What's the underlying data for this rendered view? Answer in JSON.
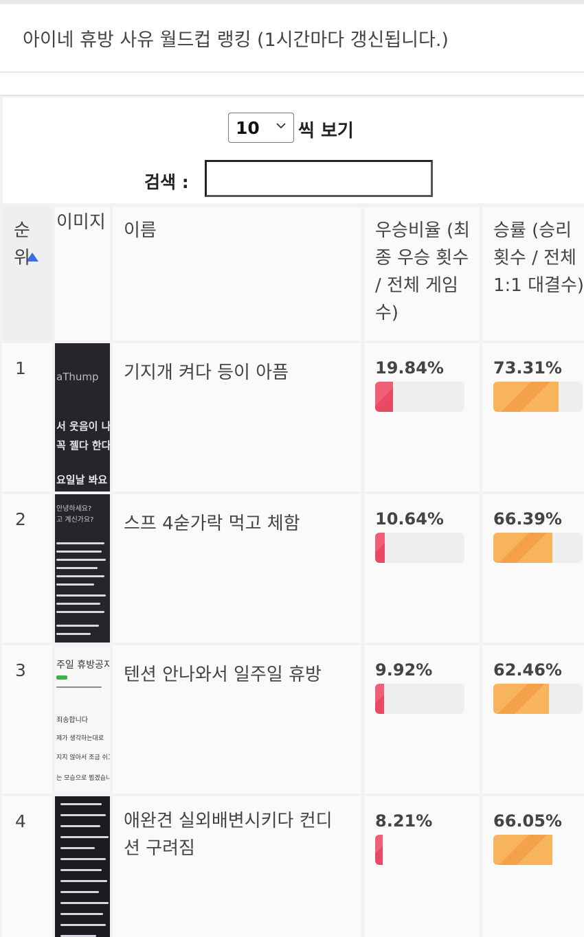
{
  "header": {
    "title": "아이네 휴방 사유 월드컵 랭킹 (1시간마다 갱신됩니다.)"
  },
  "controls": {
    "page_size_value": "10",
    "per_page_label": "씩 보기",
    "search_label": "검색 :",
    "search_value": ""
  },
  "table": {
    "headers": {
      "rank": "순위",
      "image": "이미지",
      "name": "이름",
      "win_ratio": "우승비율 (최종 우승 횟수 / 전체 게임수)",
      "win_rate": "승률 (승리 횟수 / 전체 1:1 대결수)"
    },
    "rows": [
      {
        "rank": "1",
        "name": "기지개 켜다 등이 아픔",
        "win_ratio": "19.84%",
        "win_ratio_value": 19.84,
        "win_rate": "73.31%",
        "win_rate_value": 73.31,
        "thumb_lines": [
          "aThump",
          "서 웃음이 나",
          "꼭 젤다 한다",
          "요일날 봐요"
        ]
      },
      {
        "rank": "2",
        "name": "스프 4숟가락 먹고 체함",
        "win_ratio": "10.64%",
        "win_ratio_value": 10.64,
        "win_rate": "66.39%",
        "win_rate_value": 66.39,
        "thumb_lines": [
          "안녕하세요?",
          "고 계신가요?"
        ]
      },
      {
        "rank": "3",
        "name": "텐션 안나와서 일주일 휴방",
        "win_ratio": "9.92%",
        "win_ratio_value": 9.92,
        "win_rate": "62.46%",
        "win_rate_value": 62.46,
        "thumb_lines": [
          "주일 휴방공지",
          "죄송합니다",
          "제가 생각하는대로",
          "지지 않아서 조금 쉬고",
          "는 모습으로 뵙겠습니다"
        ]
      },
      {
        "rank": "4",
        "name": "애완견 실외배변시키다 컨디션 구려짐",
        "win_ratio": "8.21%",
        "win_ratio_value": 8.21,
        "win_rate": "66.05%",
        "win_rate_value": 66.05,
        "thumb_lines": []
      }
    ]
  },
  "colors": {
    "win_ratio_bar": "#ef5f78",
    "win_rate_bar": "#f6aa52",
    "sort_indicator": "#3b6fd9"
  },
  "icons": {
    "sort": "sort-ascending-icon",
    "select": "chevron-down-icon"
  }
}
